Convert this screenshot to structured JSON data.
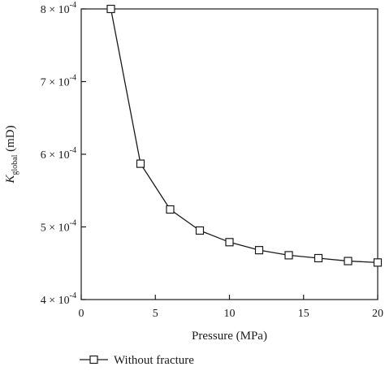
{
  "chart_data": {
    "type": "line",
    "xlabel": "Pressure (MPa)",
    "ylabel_main": "K",
    "ylabel_sub": "global",
    "ylabel_unit": " (mD)",
    "xlim": [
      0,
      20
    ],
    "ylim": [
      4,
      8
    ],
    "y_exponent": "-4",
    "x_ticks": [
      0,
      5,
      10,
      15,
      20
    ],
    "x_tick_labels": [
      "0",
      "5",
      "10",
      "15",
      "20"
    ],
    "y_ticks": [
      4,
      5,
      6,
      7,
      8
    ],
    "y_tick_labels": [
      "4 × 10",
      "5 × 10",
      "6 × 10",
      "7 × 10",
      "8 × 10"
    ],
    "series": [
      {
        "name": "Without fracture",
        "marker": "open-square",
        "color": "#1a1a1a",
        "x": [
          2,
          4,
          6,
          8,
          10,
          12,
          14,
          16,
          18,
          20
        ],
        "y": [
          8.0,
          5.87,
          5.24,
          4.95,
          4.79,
          4.68,
          4.61,
          4.57,
          4.53,
          4.51
        ]
      }
    ],
    "grid": false,
    "legend_position": "bottom-left"
  }
}
